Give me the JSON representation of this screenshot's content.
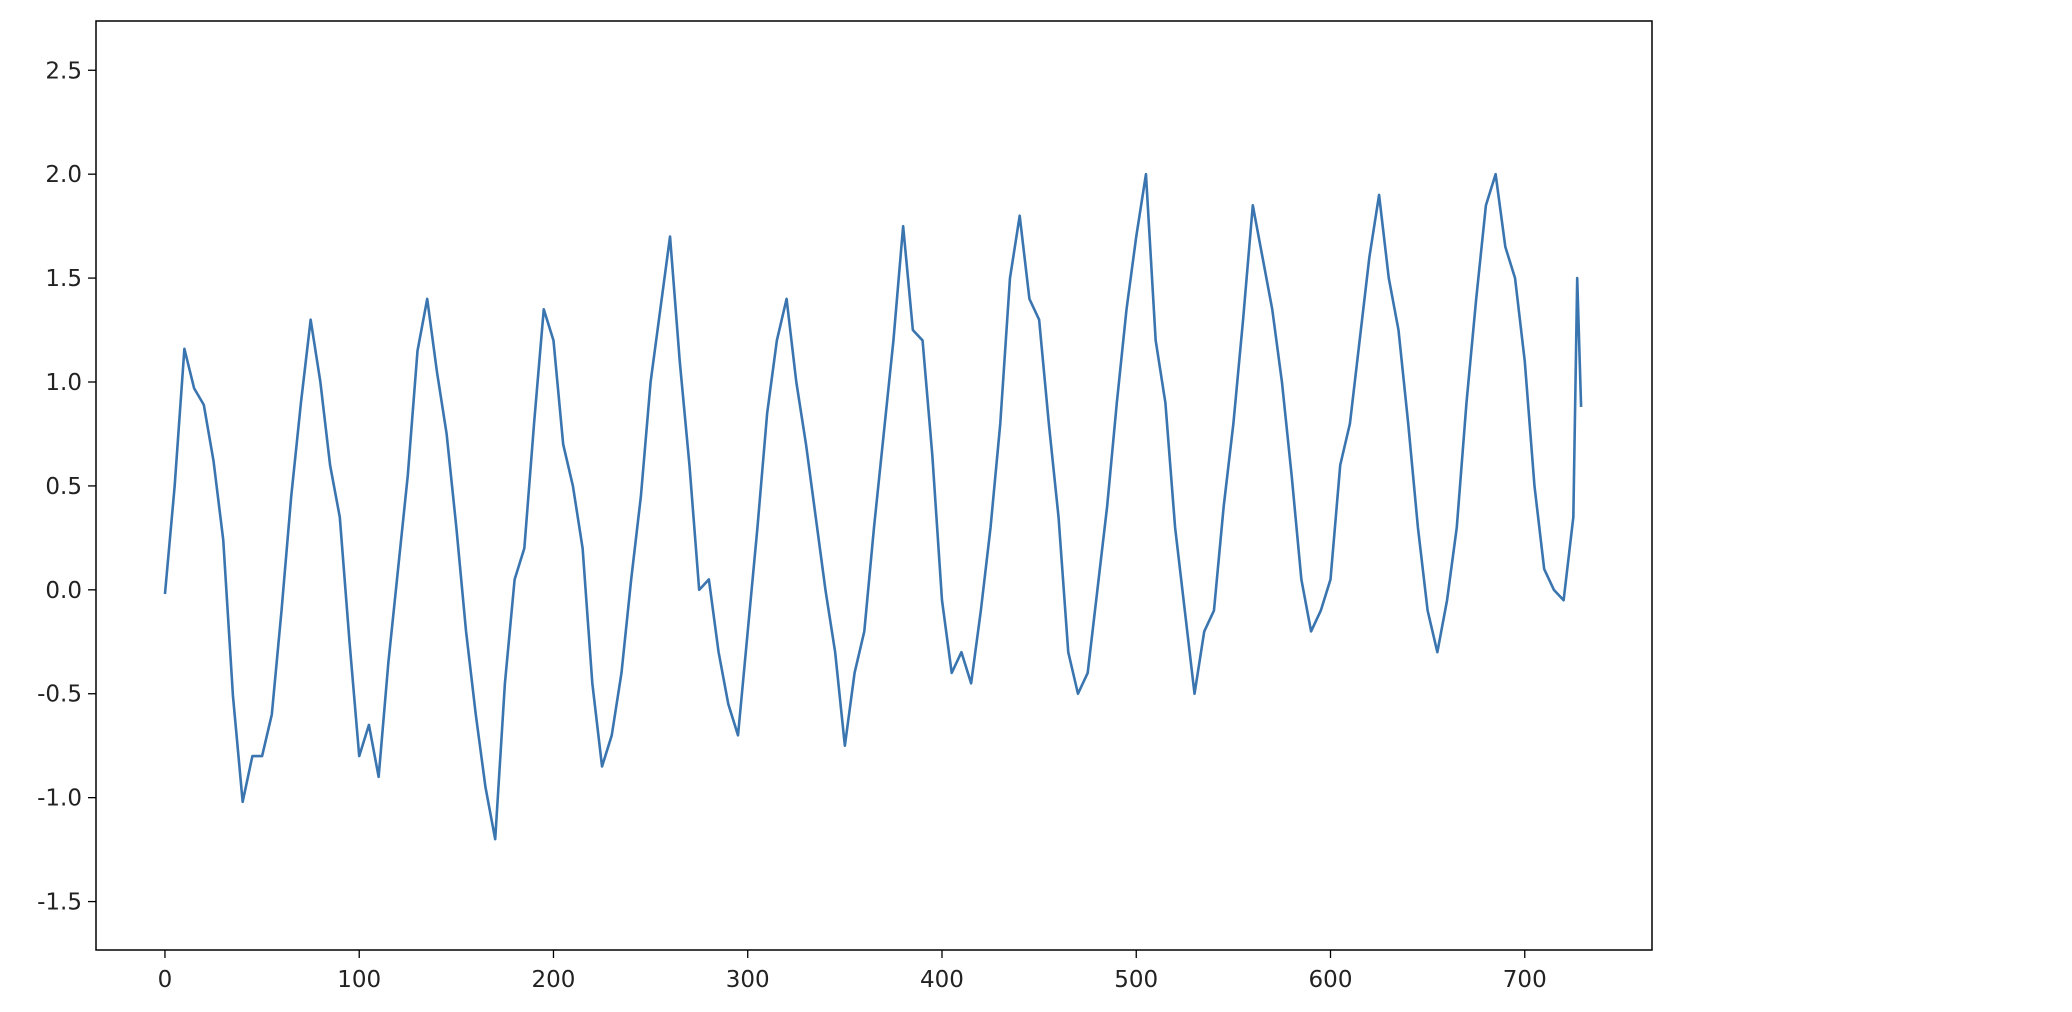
{
  "chart_data": {
    "type": "line",
    "x": [
      0,
      5,
      10,
      15,
      20,
      25,
      30,
      35,
      40,
      45,
      50,
      55,
      60,
      65,
      70,
      75,
      80,
      85,
      90,
      95,
      100,
      105,
      110,
      115,
      120,
      125,
      130,
      135,
      140,
      145,
      150,
      155,
      160,
      165,
      170,
      175,
      180,
      185,
      190,
      195,
      200,
      205,
      210,
      215,
      220,
      225,
      230,
      235,
      240,
      245,
      250,
      255,
      260,
      265,
      270,
      275,
      280,
      285,
      290,
      295,
      300,
      305,
      310,
      315,
      320,
      325,
      330,
      335,
      340,
      345,
      350,
      355,
      360,
      365,
      370,
      375,
      380,
      385,
      390,
      395,
      400,
      405,
      410,
      415,
      420,
      425,
      430,
      435,
      440,
      445,
      450,
      455,
      460,
      465,
      470,
      475,
      480,
      485,
      490,
      495,
      500,
      505,
      510,
      515,
      520,
      525,
      530,
      535,
      540,
      545,
      550,
      555,
      560,
      565,
      570,
      575,
      580,
      585,
      590,
      595,
      600,
      605,
      610,
      615,
      620,
      625,
      630,
      635,
      640,
      645,
      650,
      655,
      660,
      665,
      670,
      675,
      680,
      685,
      690,
      695,
      700,
      705,
      710,
      715,
      720,
      725,
      727,
      729
    ],
    "series": [
      {
        "color": "#3a75b0",
        "values": [
          -0.02,
          0.5,
          1.16,
          0.97,
          0.89,
          0.62,
          0.24,
          -0.51,
          -1.02,
          -0.8,
          -0.8,
          -0.6,
          -0.1,
          0.45,
          0.9,
          1.3,
          1.0,
          0.6,
          0.35,
          -0.25,
          -0.8,
          -0.65,
          -0.9,
          -0.35,
          0.1,
          0.55,
          1.15,
          1.4,
          1.05,
          0.75,
          0.3,
          -0.2,
          -0.6,
          -0.95,
          -1.2,
          -0.45,
          0.05,
          0.2,
          0.8,
          1.35,
          1.2,
          0.7,
          0.5,
          0.2,
          -0.45,
          -0.85,
          -0.7,
          -0.4,
          0.05,
          0.45,
          1.0,
          1.35,
          1.7,
          1.1,
          0.6,
          0.0,
          0.05,
          -0.3,
          -0.55,
          -0.7,
          -0.2,
          0.3,
          0.85,
          1.2,
          1.4,
          1.0,
          0.7,
          0.35,
          0.0,
          -0.3,
          -0.75,
          -0.4,
          -0.2,
          0.3,
          0.75,
          1.2,
          1.75,
          1.25,
          1.2,
          0.65,
          -0.05,
          -0.4,
          -0.3,
          -0.45,
          -0.1,
          0.3,
          0.8,
          1.5,
          1.8,
          1.4,
          1.3,
          0.8,
          0.35,
          -0.3,
          -0.5,
          -0.4,
          0.0,
          0.4,
          0.9,
          1.35,
          1.7,
          2.0,
          1.2,
          0.9,
          0.3,
          -0.1,
          -0.5,
          -0.2,
          -0.1,
          0.4,
          0.8,
          1.3,
          1.85,
          1.6,
          1.35,
          1.0,
          0.55,
          0.05,
          -0.2,
          -0.1,
          0.05,
          0.6,
          0.8,
          1.2,
          1.6,
          1.9,
          1.5,
          1.25,
          0.8,
          0.3,
          -0.1,
          -0.3,
          -0.05,
          0.3,
          0.9,
          1.4,
          1.85,
          2.0,
          1.65,
          1.5,
          1.1,
          0.5,
          0.1,
          0.0,
          -0.05,
          0.35,
          1.5,
          0.88
        ]
      }
    ],
    "xlim": [
      -35.5,
      765.5
    ],
    "ylim": [
      -1.733,
      2.737
    ],
    "xticks": [
      0,
      100,
      200,
      300,
      400,
      500,
      600,
      700
    ],
    "yticks": [
      {
        "value": -1.5,
        "label": "-1.5"
      },
      {
        "value": -1,
        "label": "-1.0"
      },
      {
        "value": -0.5,
        "label": "-0.5"
      },
      {
        "value": 0,
        "label": "0.0"
      },
      {
        "value": 0.5,
        "label": "0.5"
      },
      {
        "value": 1,
        "label": "1.0"
      },
      {
        "value": 1.5,
        "label": "1.5"
      },
      {
        "value": 2,
        "label": "2.0"
      },
      {
        "value": 2.5,
        "label": "2.5"
      }
    ],
    "grid": false
  }
}
